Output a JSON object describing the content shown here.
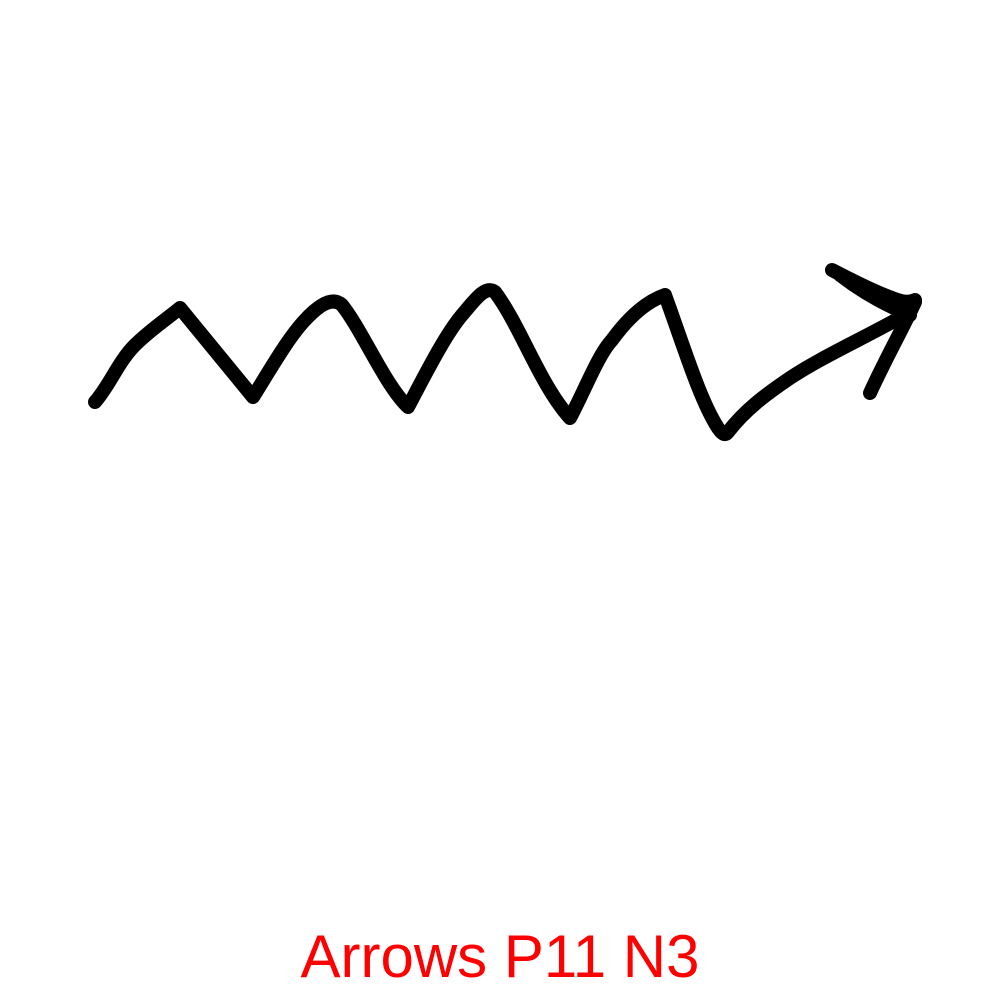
{
  "drawing": {
    "stroke_color": "#000000",
    "background_color": "#ffffff"
  },
  "caption": {
    "text": "Arrows P11 N3",
    "color": "#ff0000"
  }
}
